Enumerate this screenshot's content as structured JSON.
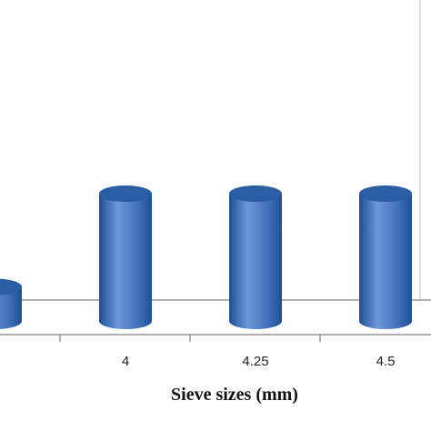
{
  "chart_data": {
    "type": "bar",
    "categories": [
      "",
      "4",
      "4.25",
      "4.5"
    ],
    "values": [
      5.7,
      9.8,
      9.8,
      9.8
    ],
    "title": "",
    "xlabel": "Sieve sizes (mm)",
    "ylabel": "",
    "ylim": [
      0,
      12
    ],
    "grid": false,
    "legend": "none",
    "bar_style": "3d-cylinder",
    "colors": {
      "bar_body": "#3f6fb8",
      "bar_highlight": "#6d98d8",
      "bar_shadow": "#1f4f95",
      "bar_top": "#2a5ea4",
      "axis": "#7f7f7f",
      "tick": "#7f7f7f",
      "text": "#222222"
    }
  }
}
